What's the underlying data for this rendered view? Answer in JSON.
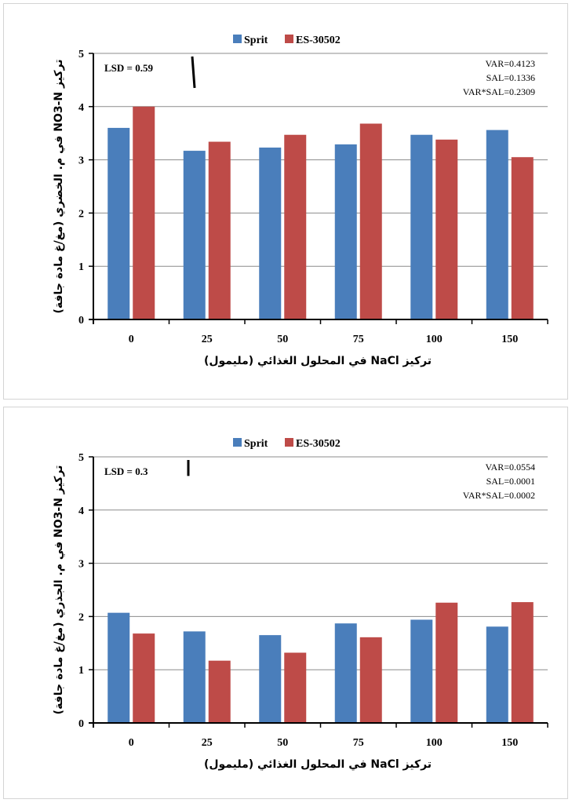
{
  "chart_data": [
    {
      "type": "bar",
      "categories": [
        "0",
        "25",
        "50",
        "75",
        "100",
        "150"
      ],
      "series": [
        {
          "name": "Sprit",
          "values": [
            3.6,
            3.17,
            3.23,
            3.29,
            3.47,
            3.56
          ],
          "color": "#4a7ebb"
        },
        {
          "name": "ES-30502",
          "values": [
            4.0,
            3.34,
            3.47,
            3.68,
            3.38,
            3.05
          ],
          "color": "#be4b48"
        }
      ],
      "ylim": [
        0,
        5
      ],
      "yticks": [
        "0",
        "1",
        "2",
        "3",
        "4",
        "5"
      ],
      "xlabel": "تركيز NaCl في المحلول الغذائي (مليمول)",
      "ylabel": "تركيز NO3-N في م. الخضري (مغ/غ مادة جافة)",
      "lsd_label": "LSD = 0.59",
      "lsd_value": 0.59,
      "stats": [
        "VAR=0.4123",
        "SAL=0.1336",
        "VAR*SAL=0.2309"
      ],
      "grid": true,
      "legend_position": "top"
    },
    {
      "type": "bar",
      "categories": [
        "0",
        "25",
        "50",
        "75",
        "100",
        "150"
      ],
      "series": [
        {
          "name": "Sprit",
          "values": [
            2.07,
            1.72,
            1.65,
            1.87,
            1.94,
            1.81
          ],
          "color": "#4a7ebb"
        },
        {
          "name": "ES-30502",
          "values": [
            1.68,
            1.17,
            1.32,
            1.61,
            2.26,
            2.27
          ],
          "color": "#be4b48"
        }
      ],
      "ylim": [
        0,
        5
      ],
      "yticks": [
        "0",
        "1",
        "2",
        "3",
        "4",
        "5"
      ],
      "xlabel": "تركيز NaCl في المحلول الغذائي (مليمول)",
      "ylabel": "تركيز NO3-N في م. الجذري (مغ/غ مادة جافة)",
      "lsd_label": "LSD = 0.3",
      "lsd_value": 0.3,
      "stats": [
        "VAR=0.0554",
        "SAL=0.0001",
        "VAR*SAL=0.0002"
      ],
      "grid": true,
      "legend_position": "top"
    }
  ]
}
